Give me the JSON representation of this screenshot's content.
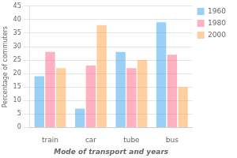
{
  "chart_data": {
    "type": "bar",
    "categories": [
      "train",
      "car",
      "tube",
      "bus"
    ],
    "series": [
      {
        "name": "1960",
        "values": [
          19,
          7,
          28,
          39
        ]
      },
      {
        "name": "1980",
        "values": [
          28,
          23,
          22,
          27
        ]
      },
      {
        "name": "2000",
        "values": [
          22,
          38,
          25,
          15
        ]
      }
    ],
    "xlabel": "Mode of transport and years",
    "ylabel": "Percentage of commuters",
    "ylim": [
      0,
      45
    ],
    "yticks": [
      0,
      5,
      10,
      15,
      20,
      25,
      30,
      35,
      40,
      45
    ],
    "grid": true,
    "legend": "upper right"
  }
}
